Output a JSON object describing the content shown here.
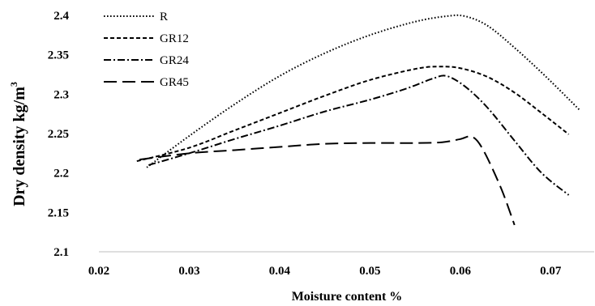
{
  "chart_data": {
    "type": "line",
    "xlabel": "Moisture content %",
    "ylabel": "Dry density kg/m",
    "ylabel_superscript": "3",
    "xlim": [
      0.02,
      0.075
    ],
    "ylim": [
      2.1,
      2.4
    ],
    "xticks": [
      0.02,
      0.03,
      0.04,
      0.05,
      0.06,
      0.07
    ],
    "xtick_labels": [
      "0.02",
      "0.03",
      "0.04",
      "0.05",
      "0.06",
      "0.07"
    ],
    "yticks": [
      2.1,
      2.15,
      2.2,
      2.25,
      2.3,
      2.35,
      2.4
    ],
    "ytick_labels": [
      "2.1",
      "2.15",
      "2.2",
      "2.25",
      "2.3",
      "2.35",
      "2.4"
    ],
    "grid": false,
    "legend_position": "top-left",
    "series": [
      {
        "name": "R",
        "dash": "dotted",
        "points": [
          [
            0.0253,
            2.207
          ],
          [
            0.03,
            2.247
          ],
          [
            0.035,
            2.287
          ],
          [
            0.04,
            2.323
          ],
          [
            0.045,
            2.352
          ],
          [
            0.05,
            2.375
          ],
          [
            0.055,
            2.392
          ],
          [
            0.0585,
            2.399
          ],
          [
            0.0605,
            2.399
          ],
          [
            0.063,
            2.387
          ],
          [
            0.066,
            2.359
          ],
          [
            0.0695,
            2.322
          ],
          [
            0.0732,
            2.28
          ]
        ]
      },
      {
        "name": "GR12",
        "dash": "dashed",
        "points": [
          [
            0.0242,
            2.215
          ],
          [
            0.03,
            2.232
          ],
          [
            0.035,
            2.254
          ],
          [
            0.04,
            2.276
          ],
          [
            0.045,
            2.298
          ],
          [
            0.05,
            2.318
          ],
          [
            0.055,
            2.332
          ],
          [
            0.0575,
            2.335
          ],
          [
            0.06,
            2.333
          ],
          [
            0.063,
            2.322
          ],
          [
            0.066,
            2.302
          ],
          [
            0.069,
            2.276
          ],
          [
            0.072,
            2.249
          ]
        ]
      },
      {
        "name": "GR24",
        "dash": "dashdot",
        "points": [
          [
            0.0255,
            2.21
          ],
          [
            0.03,
            2.225
          ],
          [
            0.035,
            2.243
          ],
          [
            0.04,
            2.26
          ],
          [
            0.045,
            2.278
          ],
          [
            0.05,
            2.293
          ],
          [
            0.054,
            2.307
          ],
          [
            0.057,
            2.32
          ],
          [
            0.0585,
            2.323
          ],
          [
            0.0605,
            2.31
          ],
          [
            0.063,
            2.283
          ],
          [
            0.066,
            2.241
          ],
          [
            0.069,
            2.2
          ],
          [
            0.072,
            2.172
          ]
        ]
      },
      {
        "name": "GR45",
        "dash": "longdash",
        "points": [
          [
            0.0245,
            2.217
          ],
          [
            0.03,
            2.225
          ],
          [
            0.035,
            2.229
          ],
          [
            0.04,
            2.233
          ],
          [
            0.045,
            2.237
          ],
          [
            0.05,
            2.238
          ],
          [
            0.055,
            2.238
          ],
          [
            0.058,
            2.239
          ],
          [
            0.06,
            2.243
          ],
          [
            0.0613,
            2.246
          ],
          [
            0.0625,
            2.23
          ],
          [
            0.0645,
            2.181
          ],
          [
            0.066,
            2.134
          ]
        ]
      }
    ]
  }
}
